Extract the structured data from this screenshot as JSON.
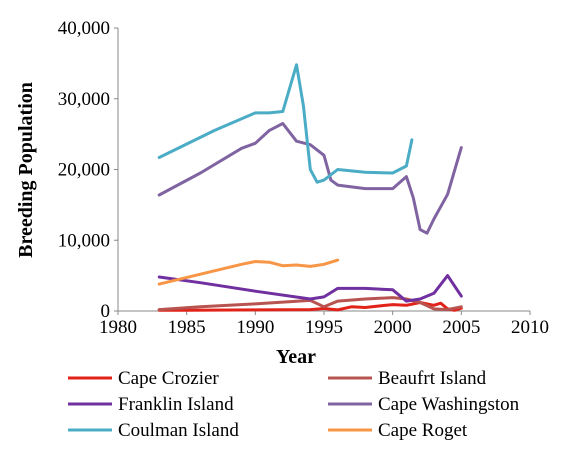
{
  "chart_data": {
    "type": "line",
    "xlabel": "Year",
    "ylabel": "Breeding Population",
    "xlim": [
      1980,
      2010
    ],
    "ylim": [
      0,
      40000
    ],
    "x_ticks": [
      1980,
      1985,
      1990,
      1995,
      2000,
      2005,
      2010
    ],
    "x_tick_labels": [
      "1980",
      "1985",
      "1990",
      "1995",
      "2000",
      "2005",
      "2010"
    ],
    "y_ticks": [
      0,
      10000,
      20000,
      30000,
      40000
    ],
    "y_tick_labels": [
      "0",
      "10,000",
      "20,000",
      "30,000",
      "40,000"
    ],
    "grid": false,
    "legend_position": "bottom",
    "series": [
      {
        "name": "Cape Crozier",
        "color": "#e2231a",
        "points": [
          [
            1983,
            100
          ],
          [
            1985,
            100
          ],
          [
            1990,
            150
          ],
          [
            1994,
            200
          ],
          [
            1995,
            350
          ],
          [
            1996,
            150
          ],
          [
            1997,
            600
          ],
          [
            1998,
            500
          ],
          [
            1999,
            700
          ],
          [
            2000,
            900
          ],
          [
            2001,
            800
          ],
          [
            2002,
            1200
          ],
          [
            2003,
            800
          ],
          [
            2003.5,
            1100
          ],
          [
            2004,
            300
          ],
          [
            2004.5,
            100
          ],
          [
            2005,
            400
          ]
        ]
      },
      {
        "name": "Beaufrt Island",
        "color": "#b85450",
        "points": [
          [
            1983,
            200
          ],
          [
            1986,
            600
          ],
          [
            1990,
            1000
          ],
          [
            1994,
            1500
          ],
          [
            1995,
            600
          ],
          [
            1996,
            1400
          ],
          [
            1998,
            1700
          ],
          [
            2000,
            1900
          ],
          [
            2001,
            1700
          ],
          [
            2002,
            1200
          ],
          [
            2003,
            300
          ],
          [
            2004,
            200
          ],
          [
            2005,
            600
          ]
        ]
      },
      {
        "name": "Franklin Island",
        "color": "#7030a0",
        "points": [
          [
            1983,
            4800
          ],
          [
            1986,
            4000
          ],
          [
            1990,
            2800
          ],
          [
            1994,
            1700
          ],
          [
            1995,
            2000
          ],
          [
            1996,
            3200
          ],
          [
            1998,
            3200
          ],
          [
            2000,
            3000
          ],
          [
            2001,
            1400
          ],
          [
            2002,
            1700
          ],
          [
            2003,
            2500
          ],
          [
            2004,
            5000
          ],
          [
            2005,
            2100
          ]
        ]
      },
      {
        "name": "Cape Washingston",
        "color": "#8064a2",
        "points": [
          [
            1983,
            16400
          ],
          [
            1986,
            19500
          ],
          [
            1989,
            23000
          ],
          [
            1990,
            23700
          ],
          [
            1991,
            25500
          ],
          [
            1992,
            26500
          ],
          [
            1993,
            24000
          ],
          [
            1994,
            23500
          ],
          [
            1995,
            22000
          ],
          [
            1995.5,
            18500
          ],
          [
            1996,
            17800
          ],
          [
            1998,
            17300
          ],
          [
            2000,
            17300
          ],
          [
            2001,
            19000
          ],
          [
            2001.5,
            16000
          ],
          [
            2002,
            11500
          ],
          [
            2002.5,
            11000
          ],
          [
            2003,
            13000
          ],
          [
            2004,
            16500
          ],
          [
            2005,
            23100
          ]
        ]
      },
      {
        "name": "Coulman Island",
        "color": "#4bacc6",
        "points": [
          [
            1983,
            21700
          ],
          [
            1987,
            25500
          ],
          [
            1990,
            28000
          ],
          [
            1991,
            28000
          ],
          [
            1992,
            28200
          ],
          [
            1993,
            34800
          ],
          [
            1993.5,
            29000
          ],
          [
            1994,
            20000
          ],
          [
            1994.5,
            18200
          ],
          [
            1995,
            18500
          ],
          [
            1996,
            20000
          ],
          [
            1998,
            19600
          ],
          [
            2000,
            19500
          ],
          [
            2001,
            20500
          ],
          [
            2001.4,
            24200
          ]
        ]
      },
      {
        "name": "Cape Roget",
        "color": "#f79646",
        "points": [
          [
            1983,
            3800
          ],
          [
            1986,
            5200
          ],
          [
            1989,
            6600
          ],
          [
            1990,
            7000
          ],
          [
            1991,
            6900
          ],
          [
            1992,
            6400
          ],
          [
            1993,
            6500
          ],
          [
            1994,
            6300
          ],
          [
            1995,
            6600
          ],
          [
            1996,
            7200
          ]
        ]
      }
    ]
  }
}
